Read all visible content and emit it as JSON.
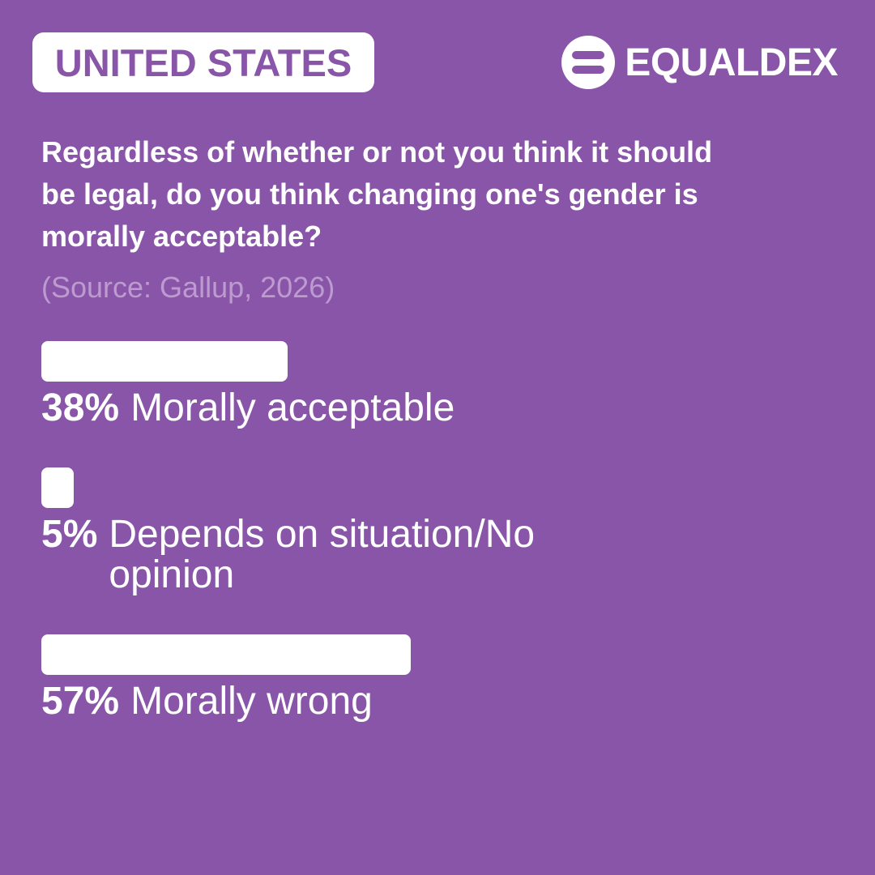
{
  "country": "UNITED STATES",
  "brand": {
    "name": "EQUALDEX",
    "icon": "equaldex-logo-icon"
  },
  "question": "Regardless of whether or not you think it should be legal, do you think changing one's gender is morally acceptable?",
  "source": "(Source: Gallup, 2026)",
  "colors": {
    "background": "#8955a8",
    "bar": "#ffffff",
    "source_text": "#bd9ad0"
  },
  "chart_data": {
    "type": "bar",
    "orientation": "horizontal",
    "categories": [
      "Morally acceptable",
      "Depends on situation/No opinion",
      "Morally wrong"
    ],
    "values": [
      38,
      5,
      57
    ],
    "value_labels": [
      "38%",
      "5%",
      "57%"
    ],
    "xlim": [
      0,
      100
    ],
    "grid": false
  }
}
